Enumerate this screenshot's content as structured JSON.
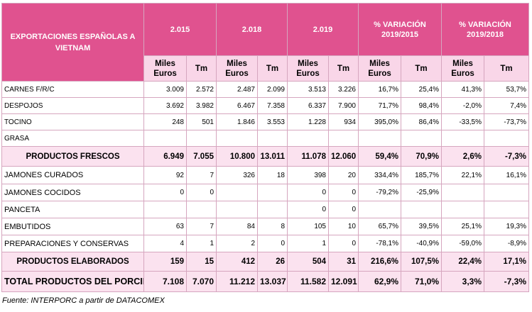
{
  "header": {
    "title": "EXPORTACIONES ESPAÑOLAS A VIETNAM",
    "years": [
      "2.015",
      "2.018",
      "2.019"
    ],
    "var1": "% VARIACIÓN 2019/2015",
    "var2": "% VARIACIÓN 2019/2018"
  },
  "subheader": {
    "miles": "Miles Euros",
    "tm": "Tm"
  },
  "rows": [
    {
      "label": "CARNES F/R/C",
      "v": [
        "3.009",
        "2.572",
        "2.487",
        "2.099",
        "3.513",
        "3.226",
        "16,7%",
        "25,4%",
        "41,3%",
        "53,7%"
      ]
    },
    {
      "label": "DESPOJOS",
      "v": [
        "3.692",
        "3.982",
        "6.467",
        "7.358",
        "6.337",
        "7.900",
        "71,7%",
        "98,4%",
        "-2,0%",
        "7,4%"
      ]
    },
    {
      "label": "TOCINO",
      "v": [
        "248",
        "501",
        "1.846",
        "3.553",
        "1.228",
        "934",
        "395,0%",
        "86,4%",
        "-33,5%",
        "-73,7%"
      ]
    },
    {
      "label": "GRASA",
      "v": [
        "",
        "",
        "",
        "",
        "",
        "",
        "",
        "",
        "",
        ""
      ]
    },
    {
      "label": "PRODUCTOS FRESCOS",
      "v": [
        "6.949",
        "7.055",
        "10.800",
        "13.011",
        "11.078",
        "12.060",
        "59,4%",
        "70,9%",
        "2,6%",
        "-7,3%"
      ]
    },
    {
      "label": "JAMONES CURADOS",
      "v": [
        "92",
        "7",
        "326",
        "18",
        "398",
        "20",
        "334,4%",
        "185,7%",
        "22,1%",
        "16,1%"
      ]
    },
    {
      "label": "JAMONES COCIDOS",
      "v": [
        "0",
        "0",
        "",
        "",
        "0",
        "0",
        "-79,2%",
        "-25,9%",
        "",
        ""
      ]
    },
    {
      "label": "PANCETA",
      "v": [
        "",
        "",
        "",
        "",
        "0",
        "0",
        "",
        "",
        "",
        ""
      ]
    },
    {
      "label": "EMBUTIDOS",
      "v": [
        "63",
        "7",
        "84",
        "8",
        "105",
        "10",
        "65,7%",
        "39,5%",
        "25,1%",
        "19,3%"
      ]
    },
    {
      "label": "PREPARACIONES Y CONSERVAS",
      "v": [
        "4",
        "1",
        "2",
        "0",
        "1",
        "0",
        "-78,1%",
        "-40,9%",
        "-59,0%",
        "-8,9%"
      ]
    },
    {
      "label": "PRODUCTOS ELABORADOS",
      "v": [
        "159",
        "15",
        "412",
        "26",
        "504",
        "31",
        "216,6%",
        "107,5%",
        "22,4%",
        "17,1%"
      ]
    },
    {
      "label": "TOTAL PRODUCTOS DEL PORCINO",
      "v": [
        "7.108",
        "7.070",
        "11.212",
        "13.037",
        "11.582",
        "12.091",
        "62,9%",
        "71,0%",
        "3,3%",
        "-7,3%"
      ]
    }
  ],
  "source": "Fuente: INTERPORC a partir de DATACOMEX"
}
